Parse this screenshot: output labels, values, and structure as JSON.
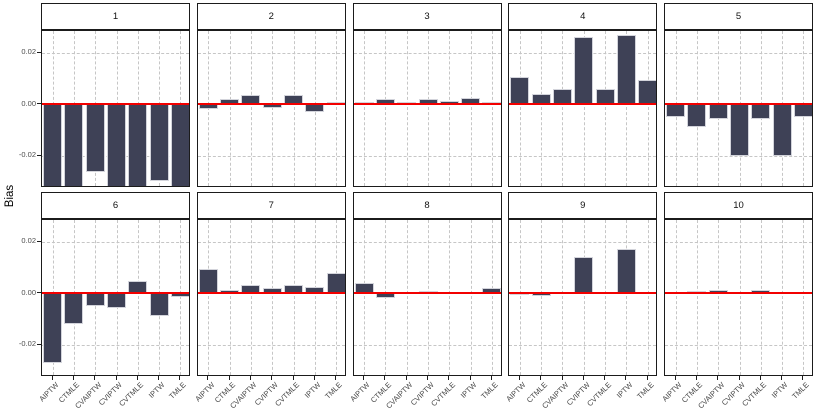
{
  "chart_data": {
    "type": "bar",
    "title": "",
    "ylabel": "Bias",
    "xlabel": "",
    "facet_layout": {
      "rows": 2,
      "cols": 5
    },
    "categories": [
      "AIPTW",
      "CTMLE",
      "CVAIPTW",
      "CVIPTW",
      "CVTMLE",
      "IPTW",
      "TMLE"
    ],
    "ytick_labels": [
      "0.02",
      "0.00",
      "-0.02"
    ],
    "ytick_values": [
      0.02,
      0.0,
      -0.02
    ],
    "ylim": [
      -0.0326,
      0.0284
    ],
    "grid": "dashed",
    "legend": "none",
    "zero_reference_line": {
      "y": 0.0,
      "color": "#F20000"
    },
    "bar_fill_color": "#3E4156",
    "bar_stroke_color": "#D3D4DB",
    "panels": [
      {
        "label": "1",
        "values": [
          -0.035,
          -0.035,
          -0.0265,
          -0.035,
          -0.035,
          -0.03,
          -0.035
        ]
      },
      {
        "label": "2",
        "values": [
          -0.002,
          0.002,
          0.0035,
          -0.0015,
          0.0035,
          -0.003,
          0.001
        ]
      },
      {
        "label": "3",
        "values": [
          0.0008,
          0.002,
          0.001,
          0.002,
          0.0012,
          0.0025,
          0.0008
        ]
      },
      {
        "label": "4",
        "values": [
          0.0105,
          0.004,
          0.006,
          0.026,
          0.006,
          0.027,
          0.0095
        ]
      },
      {
        "label": "5",
        "values": [
          -0.005,
          -0.009,
          -0.006,
          -0.02,
          -0.006,
          -0.02,
          -0.005
        ]
      },
      {
        "label": "6",
        "values": [
          -0.027,
          -0.012,
          -0.005,
          -0.006,
          0.0047,
          -0.009,
          -0.0015
        ]
      },
      {
        "label": "7",
        "values": [
          0.0093,
          0.0013,
          0.003,
          0.002,
          0.003,
          0.0025,
          0.008
        ]
      },
      {
        "label": "8",
        "values": [
          0.0038,
          -0.002,
          0.0005,
          0.0008,
          0.0,
          0.0004,
          0.002
        ]
      },
      {
        "label": "9",
        "values": [
          -0.0005,
          -0.0012,
          0.0,
          0.014,
          0.0,
          0.017,
          0.0
        ]
      },
      {
        "label": "10",
        "values": [
          0.0,
          0.001,
          0.0012,
          0.0005,
          0.0012,
          0.0005,
          0.0
        ]
      }
    ]
  }
}
